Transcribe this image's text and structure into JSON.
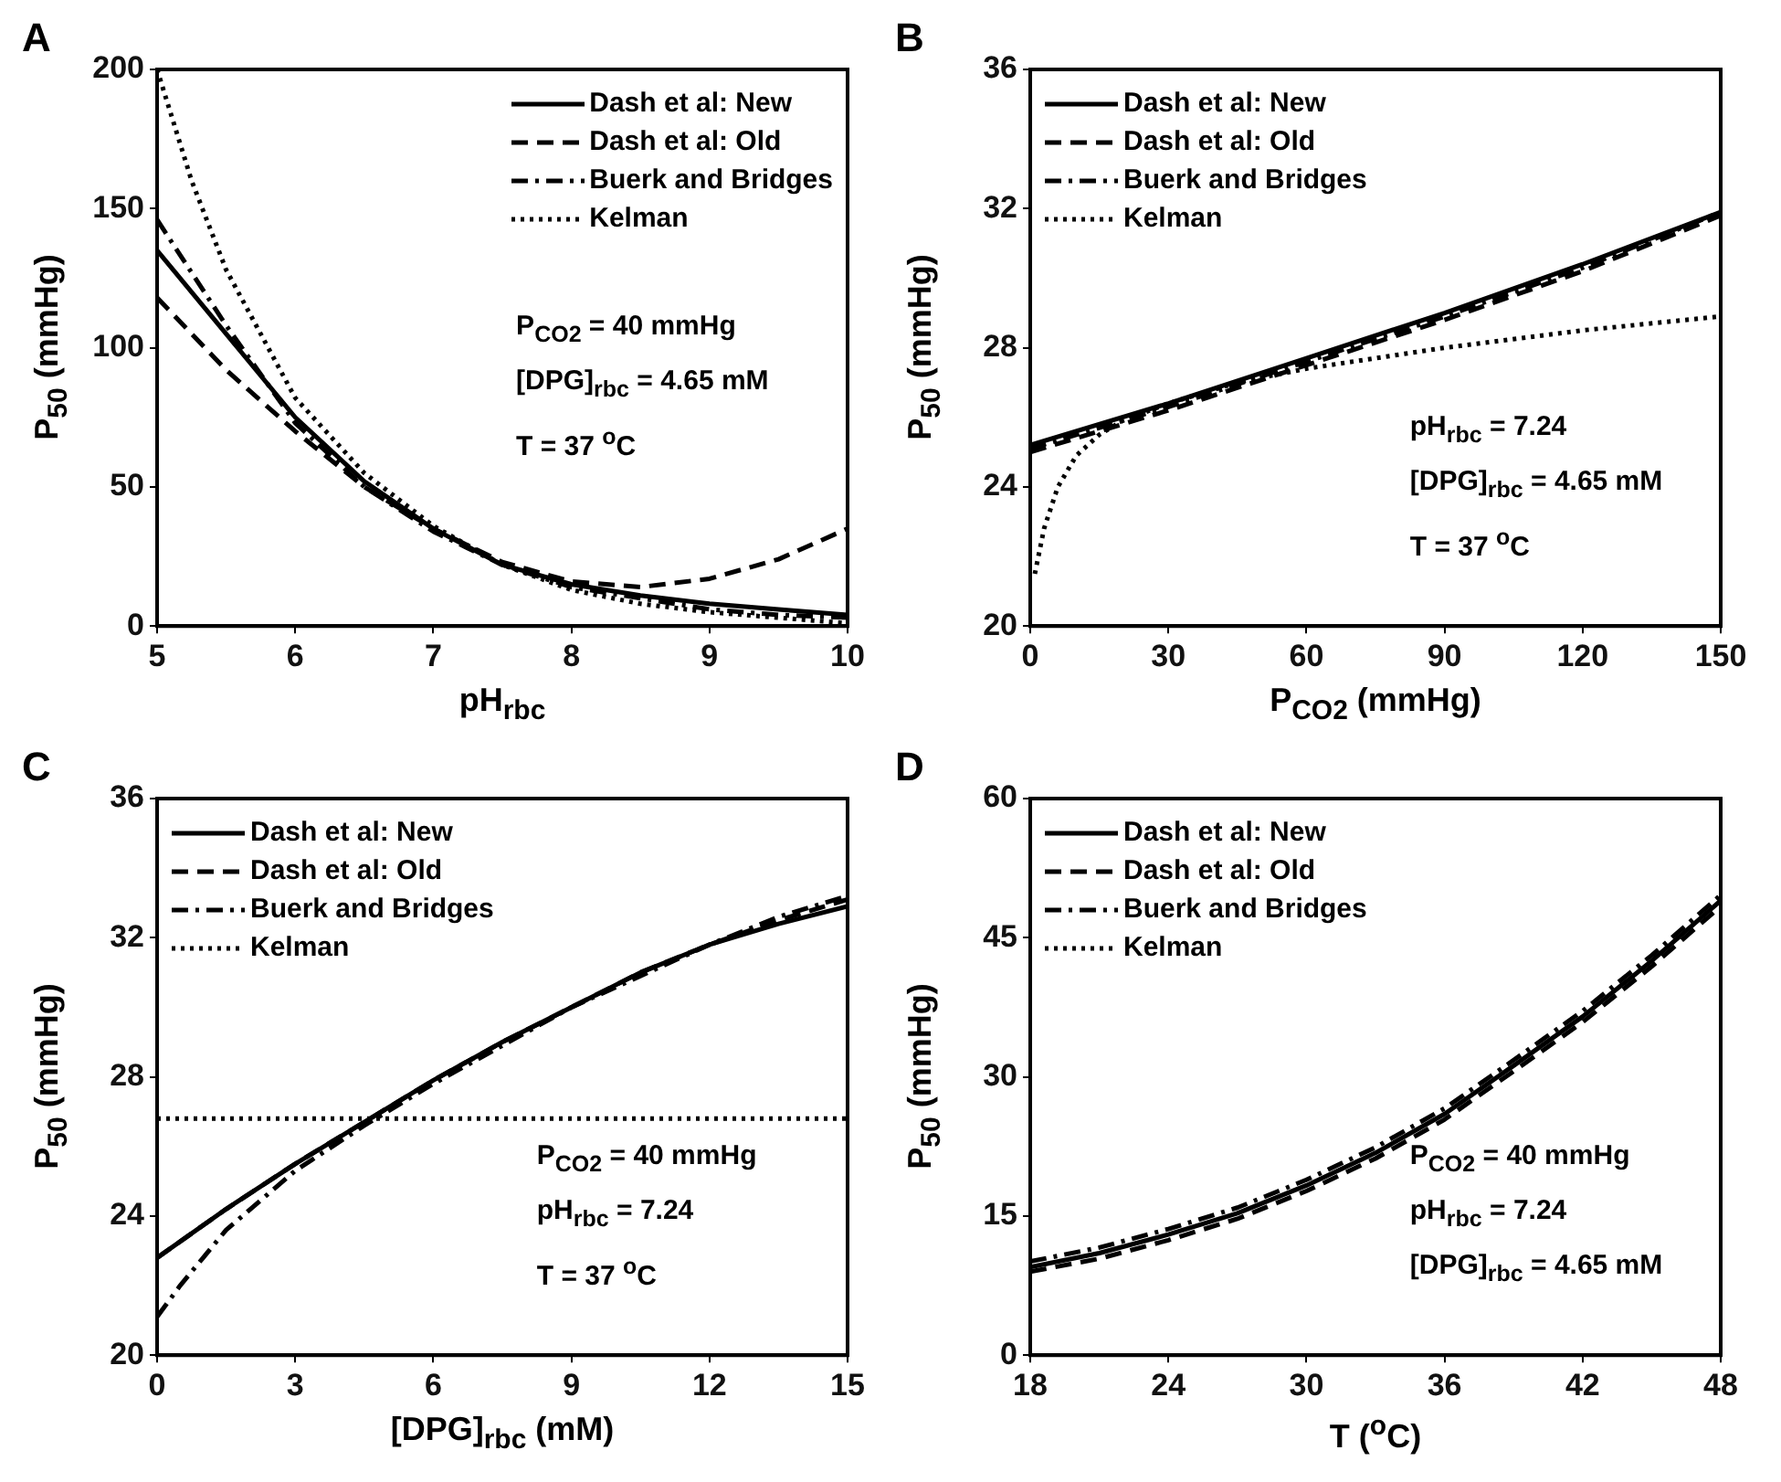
{
  "chart_data": [
    {
      "type": "line",
      "title": "A",
      "xlabel": "pH$_{rbc}$",
      "ylabel": "P$_{50}$ (mmHg)",
      "xlim": [
        5,
        10
      ],
      "xticks": [
        5,
        6,
        7,
        8,
        9,
        10
      ],
      "ylim": [
        0,
        200
      ],
      "yticks": [
        0,
        50,
        100,
        150,
        200
      ],
      "grid": false,
      "legend": "top right",
      "annotations": [
        "P$_{CO2}$ = 40 mmHg",
        "[DPG]$_{rbc}$ = 4.65 mM",
        "T = 37 $^{o}$C"
      ],
      "series": [
        {
          "name": "Dash et al: New",
          "color": "#000000",
          "line_style": "solid",
          "x": [
            5,
            5.5,
            6,
            6.5,
            7,
            7.5,
            8,
            8.5,
            9,
            9.5,
            10
          ],
          "values": [
            135,
            105,
            75,
            52,
            35,
            22,
            15,
            11,
            8,
            6,
            4
          ]
        },
        {
          "name": "Dash et al: Old",
          "color": "#000000",
          "line_style": "dashed",
          "x": [
            5,
            5.5,
            6,
            6.5,
            7,
            7.5,
            8,
            8.5,
            9,
            9.5,
            10
          ],
          "values": [
            118,
            92,
            70,
            50,
            35,
            23,
            16,
            14,
            17,
            24,
            35
          ]
        },
        {
          "name": "Buerk and Bridges",
          "color": "#000000",
          "line_style": "dashdot",
          "x": [
            5,
            5.5,
            6,
            6.5,
            7,
            7.5,
            8,
            8.5,
            9,
            9.5,
            10
          ],
          "values": [
            146,
            108,
            73,
            50,
            34,
            22,
            14,
            10,
            6,
            4,
            3
          ]
        },
        {
          "name": "Kelman",
          "color": "#000000",
          "line_style": "dotted",
          "x": [
            5,
            5.25,
            5.5,
            6,
            6.5,
            7,
            7.5,
            8,
            8.5,
            9,
            9.5,
            10
          ],
          "values": [
            200,
            160,
            128,
            82,
            55,
            36,
            22,
            13,
            8,
            5,
            3,
            1
          ]
        }
      ]
    },
    {
      "type": "line",
      "title": "B",
      "xlabel": "P$_{CO2}$ (mmHg)",
      "ylabel": "P$_{50}$ (mmHg)",
      "xlim": [
        0,
        150
      ],
      "xticks": [
        0,
        30,
        60,
        90,
        120,
        150
      ],
      "ylim": [
        20,
        36
      ],
      "yticks": [
        20,
        24,
        28,
        32,
        36
      ],
      "grid": false,
      "legend": "top left",
      "annotations": [
        "pH$_{rbc}$ = 7.24",
        "[DPG]$_{rbc}$ = 4.65 mM",
        "T = 37 $^{o}$C"
      ],
      "series": [
        {
          "name": "Dash et al: New",
          "color": "#000000",
          "line_style": "solid",
          "x": [
            0,
            30,
            60,
            90,
            120,
            150
          ],
          "values": [
            25.2,
            26.4,
            27.7,
            29.0,
            30.4,
            31.9
          ]
        },
        {
          "name": "Dash et al: Old",
          "color": "#000000",
          "line_style": "dashed",
          "x": [
            0,
            30,
            60,
            90,
            120,
            150
          ],
          "values": [
            25.0,
            26.2,
            27.5,
            28.8,
            30.2,
            31.8
          ]
        },
        {
          "name": "Buerk and Bridges",
          "color": "#000000",
          "line_style": "dashdot",
          "x": [
            0,
            30,
            60,
            90,
            120,
            150
          ],
          "values": [
            25.1,
            26.3,
            27.6,
            28.9,
            30.3,
            31.9
          ]
        },
        {
          "name": "Kelman",
          "color": "#000000",
          "line_style": "dotted",
          "x": [
            1,
            3,
            6,
            10,
            15,
            20,
            30,
            45,
            60,
            90,
            120,
            150
          ],
          "values": [
            21.5,
            22.8,
            24.0,
            24.9,
            25.5,
            25.9,
            26.4,
            27.0,
            27.4,
            28.0,
            28.5,
            28.9
          ]
        }
      ]
    },
    {
      "type": "line",
      "title": "C",
      "xlabel": "[DPG]$_{rbc}$ (mM)",
      "ylabel": "P$_{50}$ (mmHg)",
      "xlim": [
        0,
        15
      ],
      "xticks": [
        0,
        3,
        6,
        9,
        12,
        15
      ],
      "ylim": [
        20,
        36
      ],
      "yticks": [
        20,
        24,
        28,
        32,
        36
      ],
      "grid": false,
      "legend": "top left",
      "annotations": [
        "P$_{CO2}$ = 40 mmHg",
        "pH$_{rbc}$ = 7.24",
        "T = 37 $^{o}$C"
      ],
      "series": [
        {
          "name": "Dash et al: New",
          "color": "#000000",
          "line_style": "solid",
          "x": [
            0,
            1.5,
            3,
            4.5,
            6,
            7.5,
            9,
            10.5,
            12,
            13.5,
            15
          ],
          "values": [
            22.8,
            24.2,
            25.5,
            26.7,
            27.9,
            29.0,
            30.0,
            31.0,
            31.8,
            32.4,
            32.9
          ]
        },
        {
          "name": "Dash et al: Old",
          "color": "#000000",
          "line_style": "dashed",
          "x": [
            0,
            1.5,
            3,
            4.5,
            6,
            7.5,
            9,
            10.5,
            12,
            13.5,
            15
          ],
          "values": [
            22.8,
            24.2,
            25.5,
            26.7,
            27.9,
            29.0,
            30.0,
            31.0,
            31.8,
            32.5,
            33.1
          ]
        },
        {
          "name": "Buerk and Bridges",
          "color": "#000000",
          "line_style": "dashdot",
          "x": [
            0,
            0.5,
            1,
            1.5,
            3,
            4.5,
            6,
            7.5,
            9,
            10.5,
            12,
            13.5,
            15
          ],
          "values": [
            21.1,
            22.0,
            22.8,
            23.6,
            25.3,
            26.6,
            27.8,
            28.9,
            30.0,
            30.9,
            31.8,
            32.6,
            33.2
          ]
        },
        {
          "name": "Kelman",
          "color": "#000000",
          "line_style": "dotted",
          "x": [
            0,
            15
          ],
          "values": [
            26.8,
            26.8
          ]
        }
      ]
    },
    {
      "type": "line",
      "title": "D",
      "xlabel": "T ($^{o}$C)",
      "ylabel": "P$_{50}$ (mmHg)",
      "xlim": [
        18,
        48
      ],
      "xticks": [
        18,
        24,
        30,
        36,
        42,
        48
      ],
      "ylim": [
        0,
        60
      ],
      "yticks": [
        0,
        15,
        30,
        45,
        60
      ],
      "grid": false,
      "legend": "top left",
      "annotations": [
        "P$_{CO2}$ = 40 mmHg",
        "pH$_{rbc}$ = 7.24",
        "[DPG]$_{rbc}$ = 4.65 mM"
      ],
      "series": [
        {
          "name": "Dash et al: New",
          "color": "#000000",
          "line_style": "solid",
          "x": [
            18,
            21,
            24,
            27,
            30,
            33,
            36,
            39,
            42,
            45,
            48
          ],
          "values": [
            9.5,
            11,
            13,
            15.3,
            18.3,
            21.8,
            26,
            31.2,
            36.5,
            42.5,
            49
          ]
        },
        {
          "name": "Dash et al: Old",
          "color": "#000000",
          "line_style": "dashed",
          "x": [
            18,
            21,
            24,
            27,
            30,
            33,
            36,
            39,
            42,
            45,
            48
          ],
          "values": [
            9.0,
            10.4,
            12.4,
            14.7,
            17.7,
            21.2,
            25.4,
            30.6,
            35.9,
            41.9,
            48.4
          ]
        },
        {
          "name": "Buerk and Bridges",
          "color": "#000000",
          "line_style": "dashdot",
          "x": [
            18,
            21,
            24,
            27,
            30,
            33,
            36,
            39,
            42,
            45,
            48
          ],
          "values": [
            10.1,
            11.6,
            13.6,
            15.9,
            18.9,
            22.4,
            26.6,
            31.8,
            37.1,
            43.1,
            49.6
          ]
        },
        {
          "name": "Kelman",
          "color": "#000000",
          "line_style": "dotted"
        }
      ]
    }
  ]
}
